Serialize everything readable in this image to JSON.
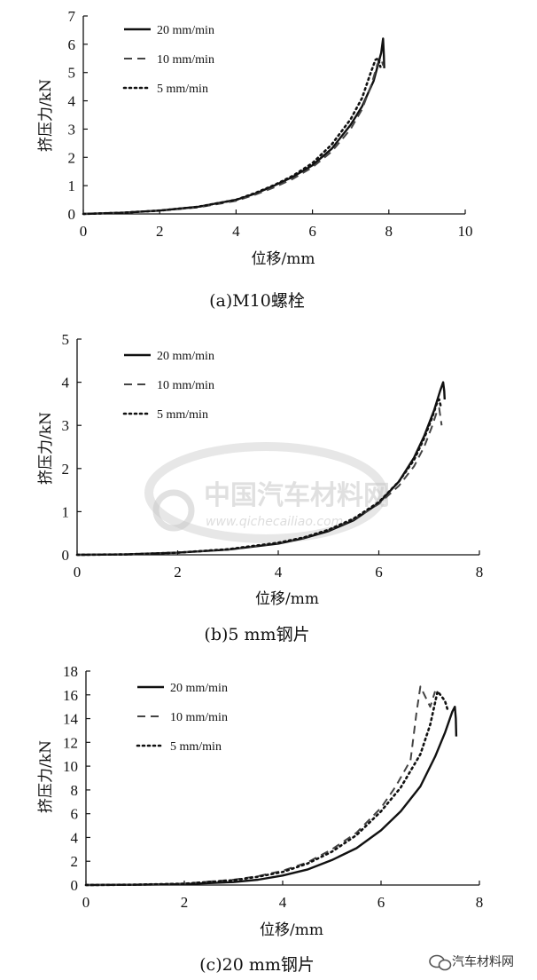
{
  "chart_data": [
    {
      "type": "line",
      "caption": "(a)M10螺栓",
      "xlabel": "位移/mm",
      "ylabel": "挤压力/kN",
      "xlim": [
        0,
        10
      ],
      "ylim": [
        0,
        7
      ],
      "xticks": [
        0,
        2,
        4,
        6,
        8,
        10
      ],
      "yticks": [
        0,
        1,
        2,
        3,
        4,
        5,
        6,
        7
      ],
      "legend_position": "top-left",
      "series": [
        {
          "name": "20 mm/min",
          "style": "solid",
          "x": [
            0,
            1,
            2,
            3,
            4,
            4.5,
            5,
            5.5,
            6,
            6.5,
            7,
            7.3,
            7.6,
            7.8,
            7.85,
            7.87,
            7.88
          ],
          "y": [
            0,
            0.04,
            0.12,
            0.25,
            0.5,
            0.72,
            1.0,
            1.32,
            1.72,
            2.3,
            3.15,
            3.8,
            4.7,
            5.7,
            6.2,
            5.6,
            5.15
          ]
        },
        {
          "name": "10 mm/min",
          "style": "dashed",
          "x": [
            0,
            1,
            2,
            3,
            4,
            4.5,
            5,
            5.5,
            6,
            6.5,
            7,
            7.3,
            7.55,
            7.7,
            7.8,
            7.85
          ],
          "y": [
            0,
            0.04,
            0.11,
            0.23,
            0.46,
            0.68,
            0.94,
            1.25,
            1.65,
            2.2,
            3.0,
            3.7,
            4.6,
            5.3,
            5.5,
            5.25
          ]
        },
        {
          "name": "5 mm/min",
          "style": "dotted",
          "x": [
            0,
            1,
            2,
            3,
            4,
            4.5,
            5,
            5.5,
            6,
            6.5,
            7,
            7.3,
            7.5,
            7.65,
            7.72,
            7.78
          ],
          "y": [
            0,
            0.04,
            0.12,
            0.25,
            0.5,
            0.74,
            1.02,
            1.36,
            1.8,
            2.45,
            3.35,
            4.1,
            4.9,
            5.45,
            5.5,
            5.2
          ]
        }
      ]
    },
    {
      "type": "line",
      "caption": "(b)5 mm钢片",
      "xlabel": "位移/mm",
      "ylabel": "挤压力/kN",
      "xlim": [
        0,
        8
      ],
      "ylim": [
        0,
        5
      ],
      "xticks": [
        0,
        2,
        4,
        6,
        8
      ],
      "yticks": [
        0,
        1,
        2,
        3,
        4,
        5
      ],
      "legend_position": "top-left",
      "series": [
        {
          "name": "20 mm/min",
          "style": "solid",
          "x": [
            0,
            1,
            2,
            3,
            4,
            4.5,
            5,
            5.5,
            6,
            6.4,
            6.7,
            6.9,
            7.1,
            7.22,
            7.28,
            7.3,
            7.31
          ],
          "y": [
            0,
            0.01,
            0.05,
            0.12,
            0.26,
            0.38,
            0.55,
            0.8,
            1.2,
            1.7,
            2.25,
            2.75,
            3.35,
            3.8,
            4.0,
            3.8,
            3.6
          ]
        },
        {
          "name": "10 mm/min",
          "style": "dashed",
          "x": [
            0,
            1,
            2,
            3,
            4,
            4.5,
            5,
            5.5,
            6,
            6.4,
            6.7,
            6.9,
            7.05,
            7.15,
            7.2,
            7.25
          ],
          "y": [
            0,
            0.01,
            0.05,
            0.12,
            0.27,
            0.39,
            0.57,
            0.82,
            1.18,
            1.6,
            2.05,
            2.5,
            2.95,
            3.3,
            3.4,
            3.0
          ]
        },
        {
          "name": "5 mm/min",
          "style": "dotted",
          "x": [
            0,
            1,
            2,
            3,
            4,
            4.5,
            5,
            5.5,
            6,
            6.4,
            6.7,
            6.9,
            7.05,
            7.15,
            7.2,
            7.24
          ],
          "y": [
            0,
            0.01,
            0.05,
            0.13,
            0.28,
            0.4,
            0.58,
            0.84,
            1.22,
            1.7,
            2.2,
            2.7,
            3.15,
            3.5,
            3.6,
            3.4
          ]
        }
      ]
    },
    {
      "type": "line",
      "caption": "(c)20 mm钢片",
      "xlabel": "位移/mm",
      "ylabel": "挤压力/kN",
      "xlim": [
        0,
        8
      ],
      "ylim": [
        0,
        18
      ],
      "xticks": [
        0,
        2,
        4,
        6,
        8
      ],
      "yticks": [
        0,
        2,
        4,
        6,
        8,
        10,
        12,
        14,
        16,
        18
      ],
      "legend_position": "top-left",
      "series": [
        {
          "name": "20 mm/min",
          "style": "solid",
          "x": [
            0,
            1,
            2,
            3,
            3.5,
            4,
            4.5,
            5,
            5.5,
            6,
            6.4,
            6.8,
            7.1,
            7.3,
            7.45,
            7.5,
            7.52,
            7.53
          ],
          "y": [
            0,
            0.02,
            0.08,
            0.25,
            0.45,
            0.8,
            1.3,
            2.1,
            3.1,
            4.6,
            6.2,
            8.3,
            10.8,
            12.8,
            14.6,
            15.0,
            14.0,
            12.5
          ]
        },
        {
          "name": "10 mm/min",
          "style": "dashed",
          "x": [
            0,
            1,
            2,
            3,
            3.5,
            4,
            4.5,
            5,
            5.5,
            6,
            6.3,
            6.6,
            6.72,
            6.8,
            7.0,
            7.1
          ],
          "y": [
            0,
            0.03,
            0.12,
            0.45,
            0.75,
            1.2,
            1.9,
            3.0,
            4.4,
            6.5,
            8.3,
            10.5,
            14.5,
            16.7,
            15.0,
            16.3
          ]
        },
        {
          "name": "5 mm/min",
          "style": "dotted",
          "x": [
            0,
            1,
            2,
            3,
            3.5,
            4,
            4.5,
            5,
            5.5,
            6,
            6.4,
            6.8,
            7.0,
            7.15,
            7.3,
            7.35
          ],
          "y": [
            0,
            0.03,
            0.11,
            0.4,
            0.7,
            1.1,
            1.8,
            2.8,
            4.2,
            6.2,
            8.2,
            11.0,
            13.5,
            16.3,
            15.5,
            14.8
          ]
        }
      ]
    }
  ],
  "watermark": {
    "text": "中国汽车材料网",
    "url": "www.qichecailiao.com"
  },
  "brand": {
    "text": "汽车材料网"
  }
}
